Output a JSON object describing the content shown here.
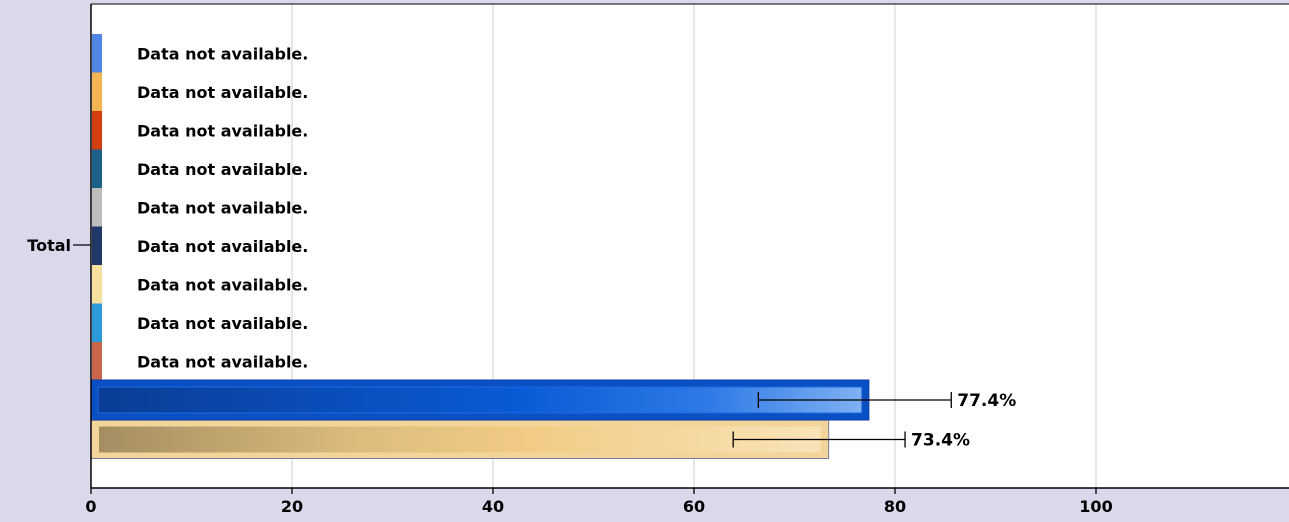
{
  "chart_data": {
    "type": "bar",
    "orientation": "horizontal",
    "category_label": "Total",
    "xlim": [
      0,
      118
    ],
    "x_ticks": [
      0,
      20,
      40,
      60,
      80,
      100
    ],
    "grid": true,
    "unavailable_rows": [
      {
        "text": "Data not available.",
        "color": "#4f86e6"
      },
      {
        "text": "Data not available.",
        "color": "#f3b552"
      },
      {
        "text": "Data not available.",
        "color": "#d43d0f"
      },
      {
        "text": "Data not available.",
        "color": "#1d6189"
      },
      {
        "text": "Data not available.",
        "color": "#bdbdbd"
      },
      {
        "text": "Data not available.",
        "color": "#1f3868"
      },
      {
        "text": "Data not available.",
        "color": "#f7e09e"
      },
      {
        "text": "Data not available.",
        "color": "#2b9ad8"
      },
      {
        "text": "Data not available.",
        "color": "#c8654a"
      }
    ],
    "series": [
      {
        "value": 77.4,
        "label": "77.4%",
        "ci": [
          66.4,
          85.6
        ],
        "color": "#0a5ad6",
        "highlight": true
      },
      {
        "value": 73.4,
        "label": "73.4%",
        "ci": [
          63.9,
          81.0
        ],
        "color": "#f2cc85",
        "highlight": false
      }
    ]
  }
}
